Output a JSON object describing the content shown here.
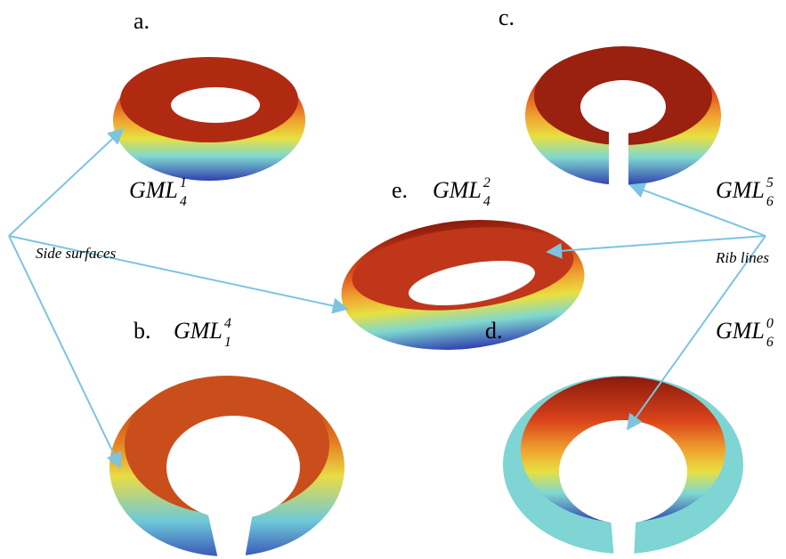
{
  "panels": [
    {
      "letter": "a.",
      "name": "GML",
      "sup": "1",
      "sub": "4"
    },
    {
      "letter": "b.",
      "name": "GML",
      "sup": "4",
      "sub": "1"
    },
    {
      "letter": "c.",
      "name": "GML",
      "sup": "5",
      "sub": "6"
    },
    {
      "letter": "d.",
      "name": "GML",
      "sup": "0",
      "sub": "6"
    },
    {
      "letter": "e.",
      "name": "GML",
      "sup": "2",
      "sub": "4"
    }
  ],
  "annotations": {
    "side_surfaces": "Side surfaces",
    "rib_lines": "Rib lines"
  }
}
